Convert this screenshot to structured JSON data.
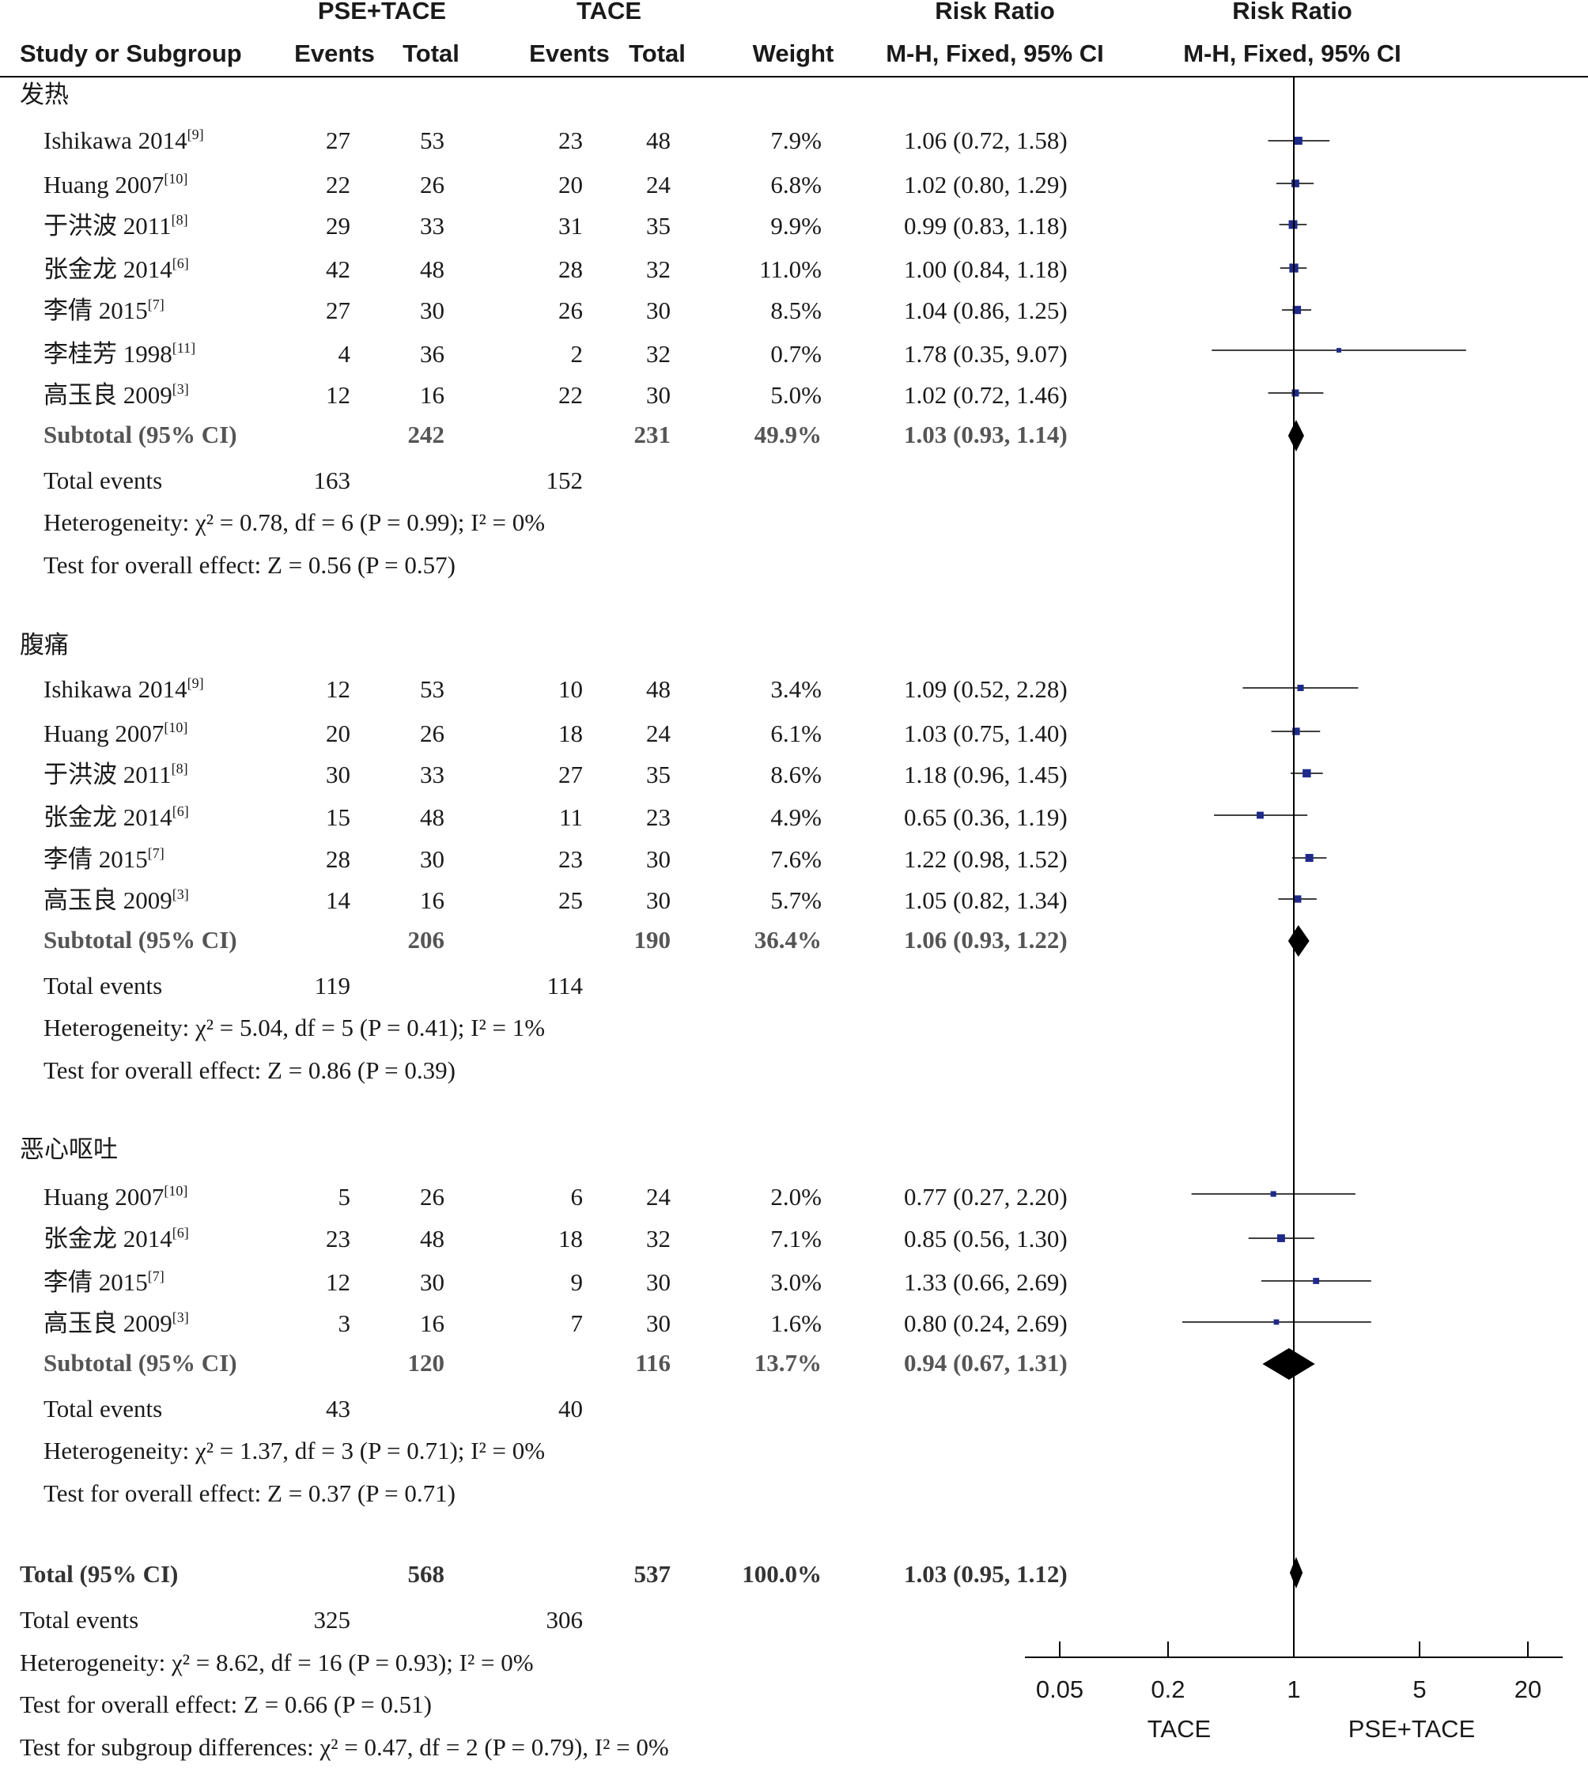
{
  "chart_data": {
    "type": "forest",
    "header": {
      "group1": "PSE+TACE",
      "group2": "TACE",
      "study_col": "Study or Subgroup",
      "events": "Events",
      "total": "Total",
      "weight": "Weight",
      "rr_col_top": "Risk Ratio",
      "rr_col_bottom": "M-H, Fixed, 95% CI",
      "plot_col_top": "Risk Ratio",
      "plot_col_bottom": "M-H, Fixed, 95% CI"
    },
    "subgroups": [
      {
        "name": "发热",
        "studies": [
          {
            "name": "Ishikawa 2014",
            "ref": "[9]",
            "e1": "27",
            "n1": "53",
            "e2": "23",
            "n2": "48",
            "weight": "7.9%",
            "ci_text": "1.06 (0.72, 1.58)",
            "rr": 1.06,
            "lo": 0.72,
            "hi": 1.58,
            "w": 7.9
          },
          {
            "name": "Huang 2007",
            "ref": "[10]",
            "e1": "22",
            "n1": "26",
            "e2": "20",
            "n2": "24",
            "weight": "6.8%",
            "ci_text": "1.02 (0.80, 1.29)",
            "rr": 1.02,
            "lo": 0.8,
            "hi": 1.29,
            "w": 6.8
          },
          {
            "name": "于洪波 2011",
            "ref": "[8]",
            "e1": "29",
            "n1": "33",
            "e2": "31",
            "n2": "35",
            "weight": "9.9%",
            "ci_text": "0.99 (0.83, 1.18)",
            "rr": 0.99,
            "lo": 0.83,
            "hi": 1.18,
            "w": 9.9
          },
          {
            "name": "张金龙 2014",
            "ref": "[6]",
            "e1": "42",
            "n1": "48",
            "e2": "28",
            "n2": "32",
            "weight": "11.0%",
            "ci_text": "1.00 (0.84, 1.18)",
            "rr": 1.0,
            "lo": 0.84,
            "hi": 1.18,
            "w": 11.0
          },
          {
            "name": "李倩 2015",
            "ref": "[7]",
            "e1": "27",
            "n1": "30",
            "e2": "26",
            "n2": "30",
            "weight": "8.5%",
            "ci_text": "1.04 (0.86, 1.25)",
            "rr": 1.04,
            "lo": 0.86,
            "hi": 1.25,
            "w": 8.5
          },
          {
            "name": "李桂芳 1998",
            "ref": "[11]",
            "e1": "4",
            "n1": "36",
            "e2": "2",
            "n2": "32",
            "weight": "0.7%",
            "ci_text": "1.78 (0.35, 9.07)",
            "rr": 1.78,
            "lo": 0.35,
            "hi": 9.07,
            "w": 0.7
          },
          {
            "name": "高玉良 2009",
            "ref": "[3]",
            "e1": "12",
            "n1": "16",
            "e2": "22",
            "n2": "30",
            "weight": "5.0%",
            "ci_text": "1.02 (0.72, 1.46)",
            "rr": 1.02,
            "lo": 0.72,
            "hi": 1.46,
            "w": 5.0
          }
        ],
        "subtotal": {
          "label": "Subtotal (95% CI)",
          "n1": "242",
          "n2": "231",
          "weight": "49.9%",
          "ci_text": "1.03 (0.93, 1.14)",
          "rr": 1.03,
          "lo": 0.93,
          "hi": 1.14
        },
        "total_events": {
          "label": "Total events",
          "e1": "163",
          "e2": "152"
        },
        "heterogeneity": "Heterogeneity: χ² = 0.78, df = 6 (P = 0.99); I² = 0%",
        "overall": "Test for overall effect: Z = 0.56 (P = 0.57)"
      },
      {
        "name": "腹痛",
        "studies": [
          {
            "name": "Ishikawa 2014",
            "ref": "[9]",
            "e1": "12",
            "n1": "53",
            "e2": "10",
            "n2": "48",
            "weight": "3.4%",
            "ci_text": "1.09 (0.52, 2.28)",
            "rr": 1.09,
            "lo": 0.52,
            "hi": 2.28,
            "w": 3.4
          },
          {
            "name": "Huang 2007",
            "ref": "[10]",
            "e1": "20",
            "n1": "26",
            "e2": "18",
            "n2": "24",
            "weight": "6.1%",
            "ci_text": "1.03 (0.75, 1.40)",
            "rr": 1.03,
            "lo": 0.75,
            "hi": 1.4,
            "w": 6.1
          },
          {
            "name": "于洪波 2011",
            "ref": "[8]",
            "e1": "30",
            "n1": "33",
            "e2": "27",
            "n2": "35",
            "weight": "8.6%",
            "ci_text": "1.18 (0.96, 1.45)",
            "rr": 1.18,
            "lo": 0.96,
            "hi": 1.45,
            "w": 8.6
          },
          {
            "name": "张金龙 2014",
            "ref": "[6]",
            "e1": "15",
            "n1": "48",
            "e2": "11",
            "n2": "23",
            "weight": "4.9%",
            "ci_text": "0.65 (0.36, 1.19)",
            "rr": 0.65,
            "lo": 0.36,
            "hi": 1.19,
            "w": 4.9
          },
          {
            "name": "李倩 2015",
            "ref": "[7]",
            "e1": "28",
            "n1": "30",
            "e2": "23",
            "n2": "30",
            "weight": "7.6%",
            "ci_text": "1.22 (0.98, 1.52)",
            "rr": 1.22,
            "lo": 0.98,
            "hi": 1.52,
            "w": 7.6
          },
          {
            "name": "高玉良 2009",
            "ref": "[3]",
            "e1": "14",
            "n1": "16",
            "e2": "25",
            "n2": "30",
            "weight": "5.7%",
            "ci_text": "1.05 (0.82, 1.34)",
            "rr": 1.05,
            "lo": 0.82,
            "hi": 1.34,
            "w": 5.7
          }
        ],
        "subtotal": {
          "label": "Subtotal (95% CI)",
          "n1": "206",
          "n2": "190",
          "weight": "36.4%",
          "ci_text": "1.06 (0.93, 1.22)",
          "rr": 1.06,
          "lo": 0.93,
          "hi": 1.22
        },
        "total_events": {
          "label": "Total events",
          "e1": "119",
          "e2": "114"
        },
        "heterogeneity": "Heterogeneity: χ² = 5.04, df = 5 (P = 0.41); I² = 1%",
        "overall": "Test for overall effect: Z = 0.86 (P = 0.39)"
      },
      {
        "name": "恶心呕吐",
        "studies": [
          {
            "name": "Huang 2007",
            "ref": "[10]",
            "e1": "5",
            "n1": "26",
            "e2": "6",
            "n2": "24",
            "weight": "2.0%",
            "ci_text": "0.77 (0.27, 2.20)",
            "rr": 0.77,
            "lo": 0.27,
            "hi": 2.2,
            "w": 2.0
          },
          {
            "name": "张金龙 2014",
            "ref": "[6]",
            "e1": "23",
            "n1": "48",
            "e2": "18",
            "n2": "32",
            "weight": "7.1%",
            "ci_text": "0.85 (0.56, 1.30)",
            "rr": 0.85,
            "lo": 0.56,
            "hi": 1.3,
            "w": 7.1
          },
          {
            "name": "李倩 2015",
            "ref": "[7]",
            "e1": "12",
            "n1": "30",
            "e2": "9",
            "n2": "30",
            "weight": "3.0%",
            "ci_text": "1.33 (0.66, 2.69)",
            "rr": 1.33,
            "lo": 0.66,
            "hi": 2.69,
            "w": 3.0
          },
          {
            "name": "高玉良 2009",
            "ref": "[3]",
            "e1": "3",
            "n1": "16",
            "e2": "7",
            "n2": "30",
            "weight": "1.6%",
            "ci_text": "0.80 (0.24, 2.69)",
            "rr": 0.8,
            "lo": 0.24,
            "hi": 2.69,
            "w": 1.6
          }
        ],
        "subtotal": {
          "label": "Subtotal (95% CI)",
          "n1": "120",
          "n2": "116",
          "weight": "13.7%",
          "ci_text": "0.94 (0.67, 1.31)",
          "rr": 0.94,
          "lo": 0.67,
          "hi": 1.31
        },
        "total_events": {
          "label": "Total events",
          "e1": "43",
          "e2": "40"
        },
        "heterogeneity": "Heterogeneity: χ² = 1.37, df = 3 (P = 0.71); I² = 0%",
        "overall": "Test for overall effect: Z = 0.37 (P = 0.71)"
      }
    ],
    "total": {
      "label": "Total (95% CI)",
      "n1": "568",
      "n2": "537",
      "weight": "100.0%",
      "ci_text": "1.03 (0.95, 1.12)",
      "rr": 1.03,
      "lo": 0.95,
      "hi": 1.12
    },
    "total_events": {
      "label": "Total events",
      "e1": "325",
      "e2": "306"
    },
    "footer": [
      "Heterogeneity: χ² = 8.62, df = 16 (P = 0.93); I² = 0%",
      "Test for overall effect: Z = 0.66 (P = 0.51)",
      "Test for subgroup differences: χ² = 0.47, df = 2 (P = 0.79), I² = 0%"
    ],
    "axis": {
      "scale": "log",
      "range": [
        0.05,
        20
      ],
      "ticks": [
        "0.05",
        "0.2",
        "1",
        "5",
        "20"
      ],
      "left_label": "TACE",
      "right_label": "PSE+TACE"
    },
    "colors": {
      "study_marker": "#1f2a8a",
      "summary_diamond": "#000000"
    }
  }
}
